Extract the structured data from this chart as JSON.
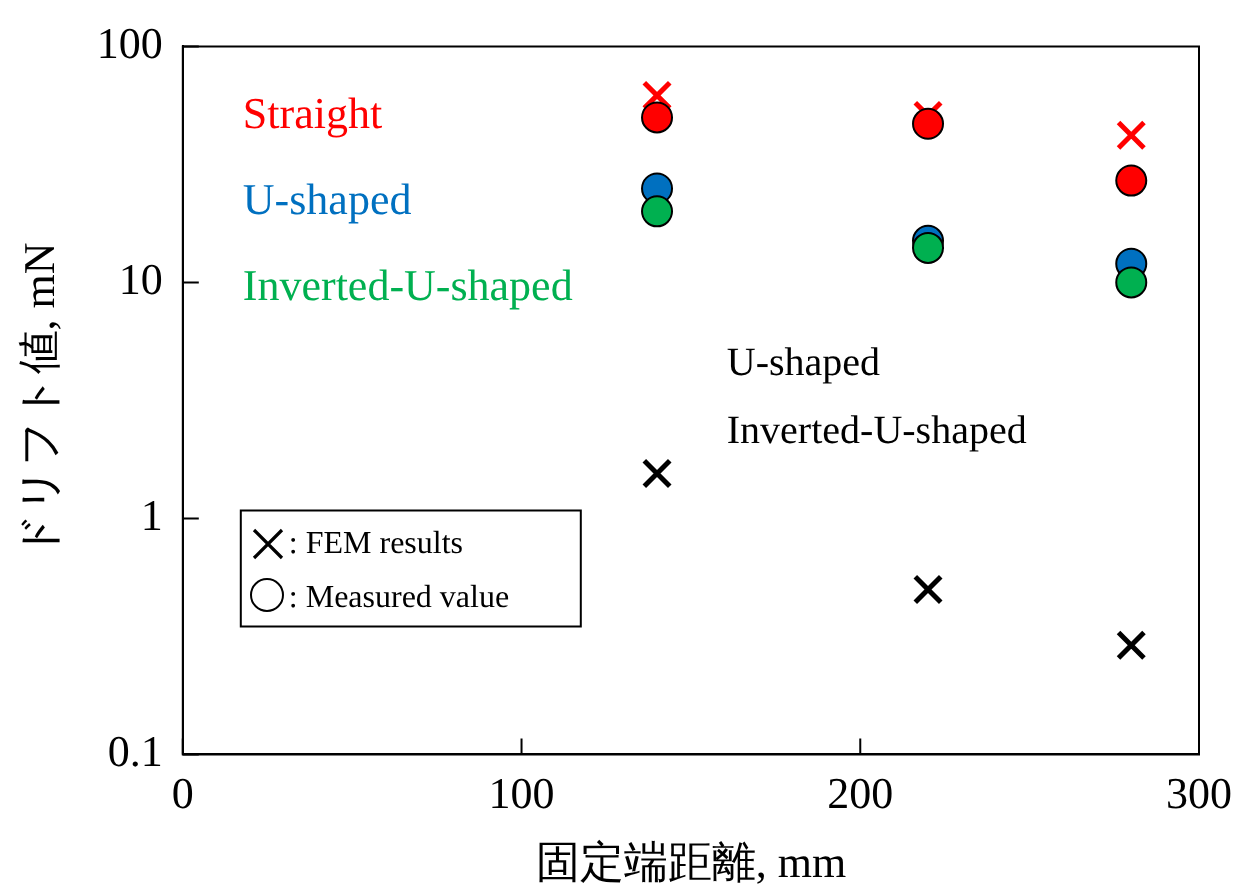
{
  "chart_data": {
    "type": "scatter",
    "xlabel": "固定端距離, mm",
    "ylabel": "ドリフト値, mN",
    "x": [
      140,
      220,
      280
    ],
    "series": [
      {
        "color": "#ff0000",
        "marker": "cross",
        "values": [
          62,
          51,
          42
        ]
      },
      {
        "name": "Straight",
        "color": "#ff0000",
        "marker": "circle",
        "values": [
          50,
          47,
          27
        ]
      },
      {
        "name": "U-shaped",
        "color": "#0070c0",
        "marker": "circle",
        "values": [
          25,
          15,
          12
        ]
      },
      {
        "name": "Inverted-U-shaped",
        "color": "#00b050",
        "marker": "circle",
        "values": [
          20,
          14,
          10
        ]
      },
      {
        "color": "#000000",
        "marker": "cross",
        "values": [
          1.55,
          0.5,
          0.29
        ]
      }
    ],
    "annotations": [
      "U-shaped",
      "Inverted-U-shaped",
      ": FEM results",
      ": Measured value"
    ],
    "log": "y",
    "xlim": [
      0,
      300
    ],
    "xticks": [
      0,
      100,
      200,
      300
    ],
    "ylim": [
      0.1,
      100
    ],
    "yticks": [
      0.1,
      1,
      10,
      100
    ],
    "grid": false,
    "legend": false
  }
}
